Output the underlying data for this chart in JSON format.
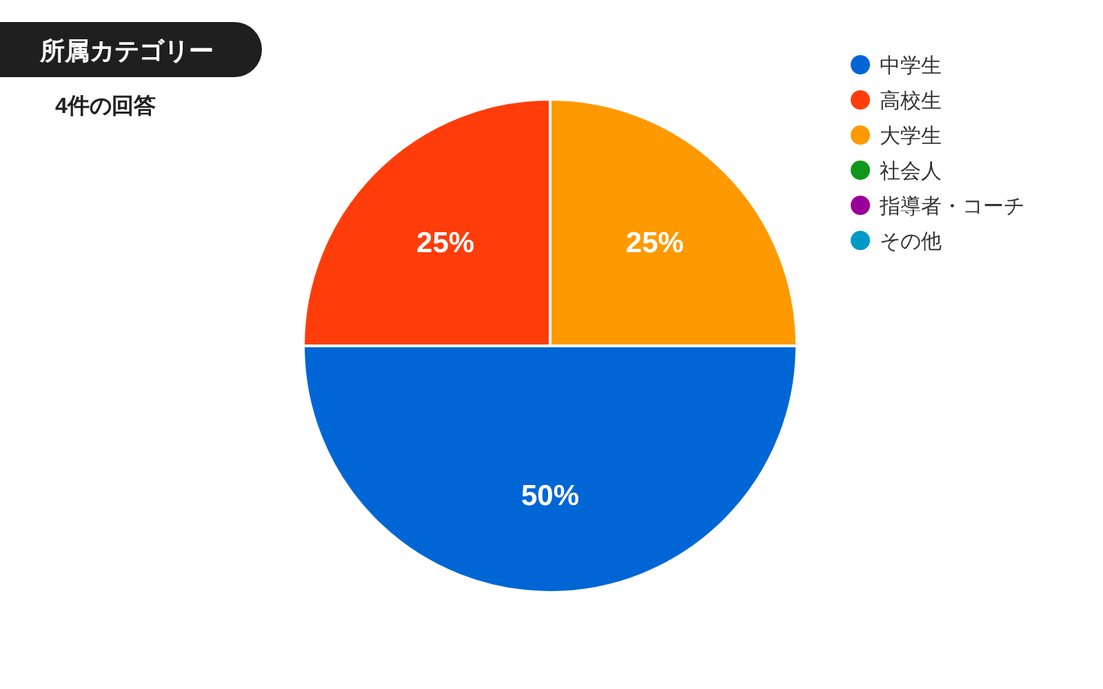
{
  "chart_data": {
    "type": "pie",
    "title": "所属カテゴリー",
    "subtitle": "4件の回答",
    "categories": [
      "中学生",
      "高校生",
      "大学生",
      "社会人",
      "指導者・コーチ",
      "その他"
    ],
    "values": [
      50,
      25,
      25,
      0,
      0,
      0
    ],
    "colors": [
      "#0066d6",
      "#ff3d0a",
      "#ff9900",
      "#109618",
      "#990099",
      "#0099c6"
    ],
    "value_labels": [
      "50%",
      "25%",
      "25%",
      null,
      null,
      null
    ],
    "legend": "top right"
  }
}
